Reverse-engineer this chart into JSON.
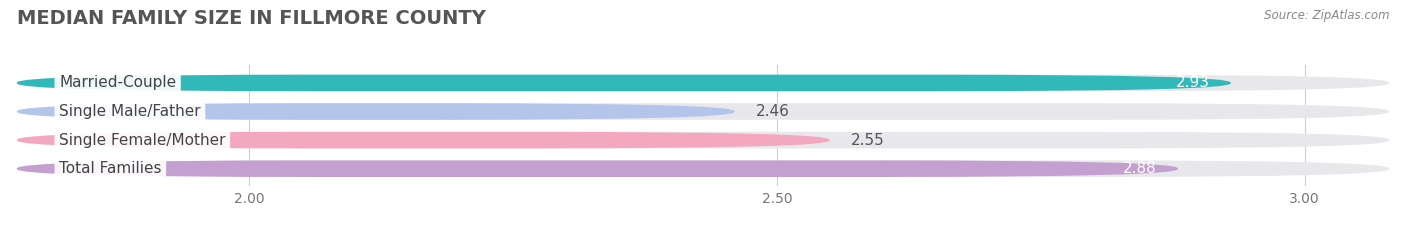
{
  "title": "MEDIAN FAMILY SIZE IN FILLMORE COUNTY",
  "source": "Source: ZipAtlas.com",
  "categories": [
    "Married-Couple",
    "Single Male/Father",
    "Single Female/Mother",
    "Total Families"
  ],
  "values": [
    2.93,
    2.46,
    2.55,
    2.88
  ],
  "bar_colors": [
    "#31b8b8",
    "#b3c5ea",
    "#f4a8c0",
    "#c3a0d0"
  ],
  "value_inside": [
    true,
    false,
    false,
    true
  ],
  "xlim_min": 1.78,
  "xlim_max": 3.08,
  "data_min": 2.0,
  "xticks": [
    2.0,
    2.5,
    3.0
  ],
  "background_color": "#ffffff",
  "bar_background_color": "#e8e8ec",
  "title_fontsize": 14,
  "label_fontsize": 11,
  "value_fontsize": 11,
  "bar_height": 0.58,
  "bar_gap": 0.18
}
